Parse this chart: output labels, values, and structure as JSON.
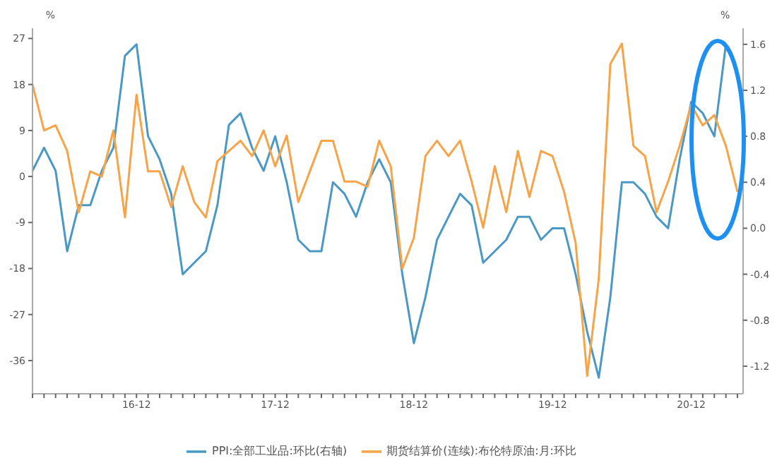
{
  "chart_data": {
    "type": "line",
    "categories": [
      null,
      null,
      null,
      null,
      null,
      null,
      null,
      null,
      null,
      "16-12",
      null,
      null,
      null,
      null,
      null,
      null,
      null,
      null,
      null,
      null,
      null,
      "17-12",
      null,
      null,
      null,
      null,
      null,
      null,
      null,
      null,
      null,
      null,
      null,
      "18-12",
      null,
      null,
      null,
      null,
      null,
      null,
      null,
      null,
      null,
      null,
      null,
      "19-12",
      null,
      null,
      null,
      null,
      null,
      null,
      null,
      null,
      null,
      null,
      null,
      "20-12",
      null,
      null,
      null,
      null
    ],
    "series": [
      {
        "name": "PPI:全部工业品:环比(右轴)",
        "color": "#4a98c4",
        "axis": "y2",
        "values": [
          0.5,
          0.7,
          0.5,
          -0.2,
          0.2,
          0.2,
          0.5,
          0.7,
          1.5,
          1.6,
          0.8,
          0.6,
          0.3,
          -0.4,
          -0.3,
          -0.2,
          0.2,
          0.9,
          1.0,
          0.7,
          0.5,
          0.8,
          0.4,
          -0.1,
          -0.2,
          -0.2,
          0.4,
          0.3,
          0.1,
          0.4,
          0.6,
          0.4,
          -0.4,
          -1.0,
          -0.6,
          -0.1,
          0.1,
          0.3,
          0.2,
          -0.3,
          -0.2,
          -0.1,
          0.1,
          0.1,
          -0.1,
          0.0,
          0.0,
          -0.4,
          -0.9,
          -1.3,
          -0.6,
          0.4,
          0.4,
          0.3,
          0.1,
          0.0,
          0.6,
          1.1,
          1.0,
          0.8,
          1.6,
          null
        ]
      },
      {
        "name": "期货结算价(连续):布伦特原油:月:环比",
        "color": "#f7a348",
        "values": [
          18,
          9,
          10,
          5,
          -7,
          1,
          0,
          9,
          -8,
          16,
          1,
          1,
          -6,
          2,
          -5,
          -8,
          3,
          5,
          7,
          4,
          9,
          2,
          8,
          -5,
          1,
          7,
          7,
          -1,
          -1,
          -2,
          7,
          2,
          -18,
          -12,
          4,
          7,
          4,
          7,
          -1,
          -10,
          2,
          -7,
          5,
          -4,
          5,
          4,
          -3,
          -13,
          -39,
          -20,
          22,
          26,
          6,
          4,
          -7,
          -1,
          6,
          14,
          10,
          12,
          6,
          -3
        ]
      }
    ],
    "ylabel": "%",
    "y2label": "%",
    "ylim": [
      -42.5,
      29
    ],
    "yticks": [
      -36,
      -27,
      -18,
      -9,
      0,
      9,
      18,
      27
    ],
    "y2lim": [
      -1.44,
      1.74
    ],
    "y2ticks": [
      -1.2,
      -0.8,
      -0.4,
      {
        "value": 0,
        "label": "0.0"
      },
      0.4,
      0.8,
      1.2,
      1.6
    ],
    "legend": "bottom"
  }
}
